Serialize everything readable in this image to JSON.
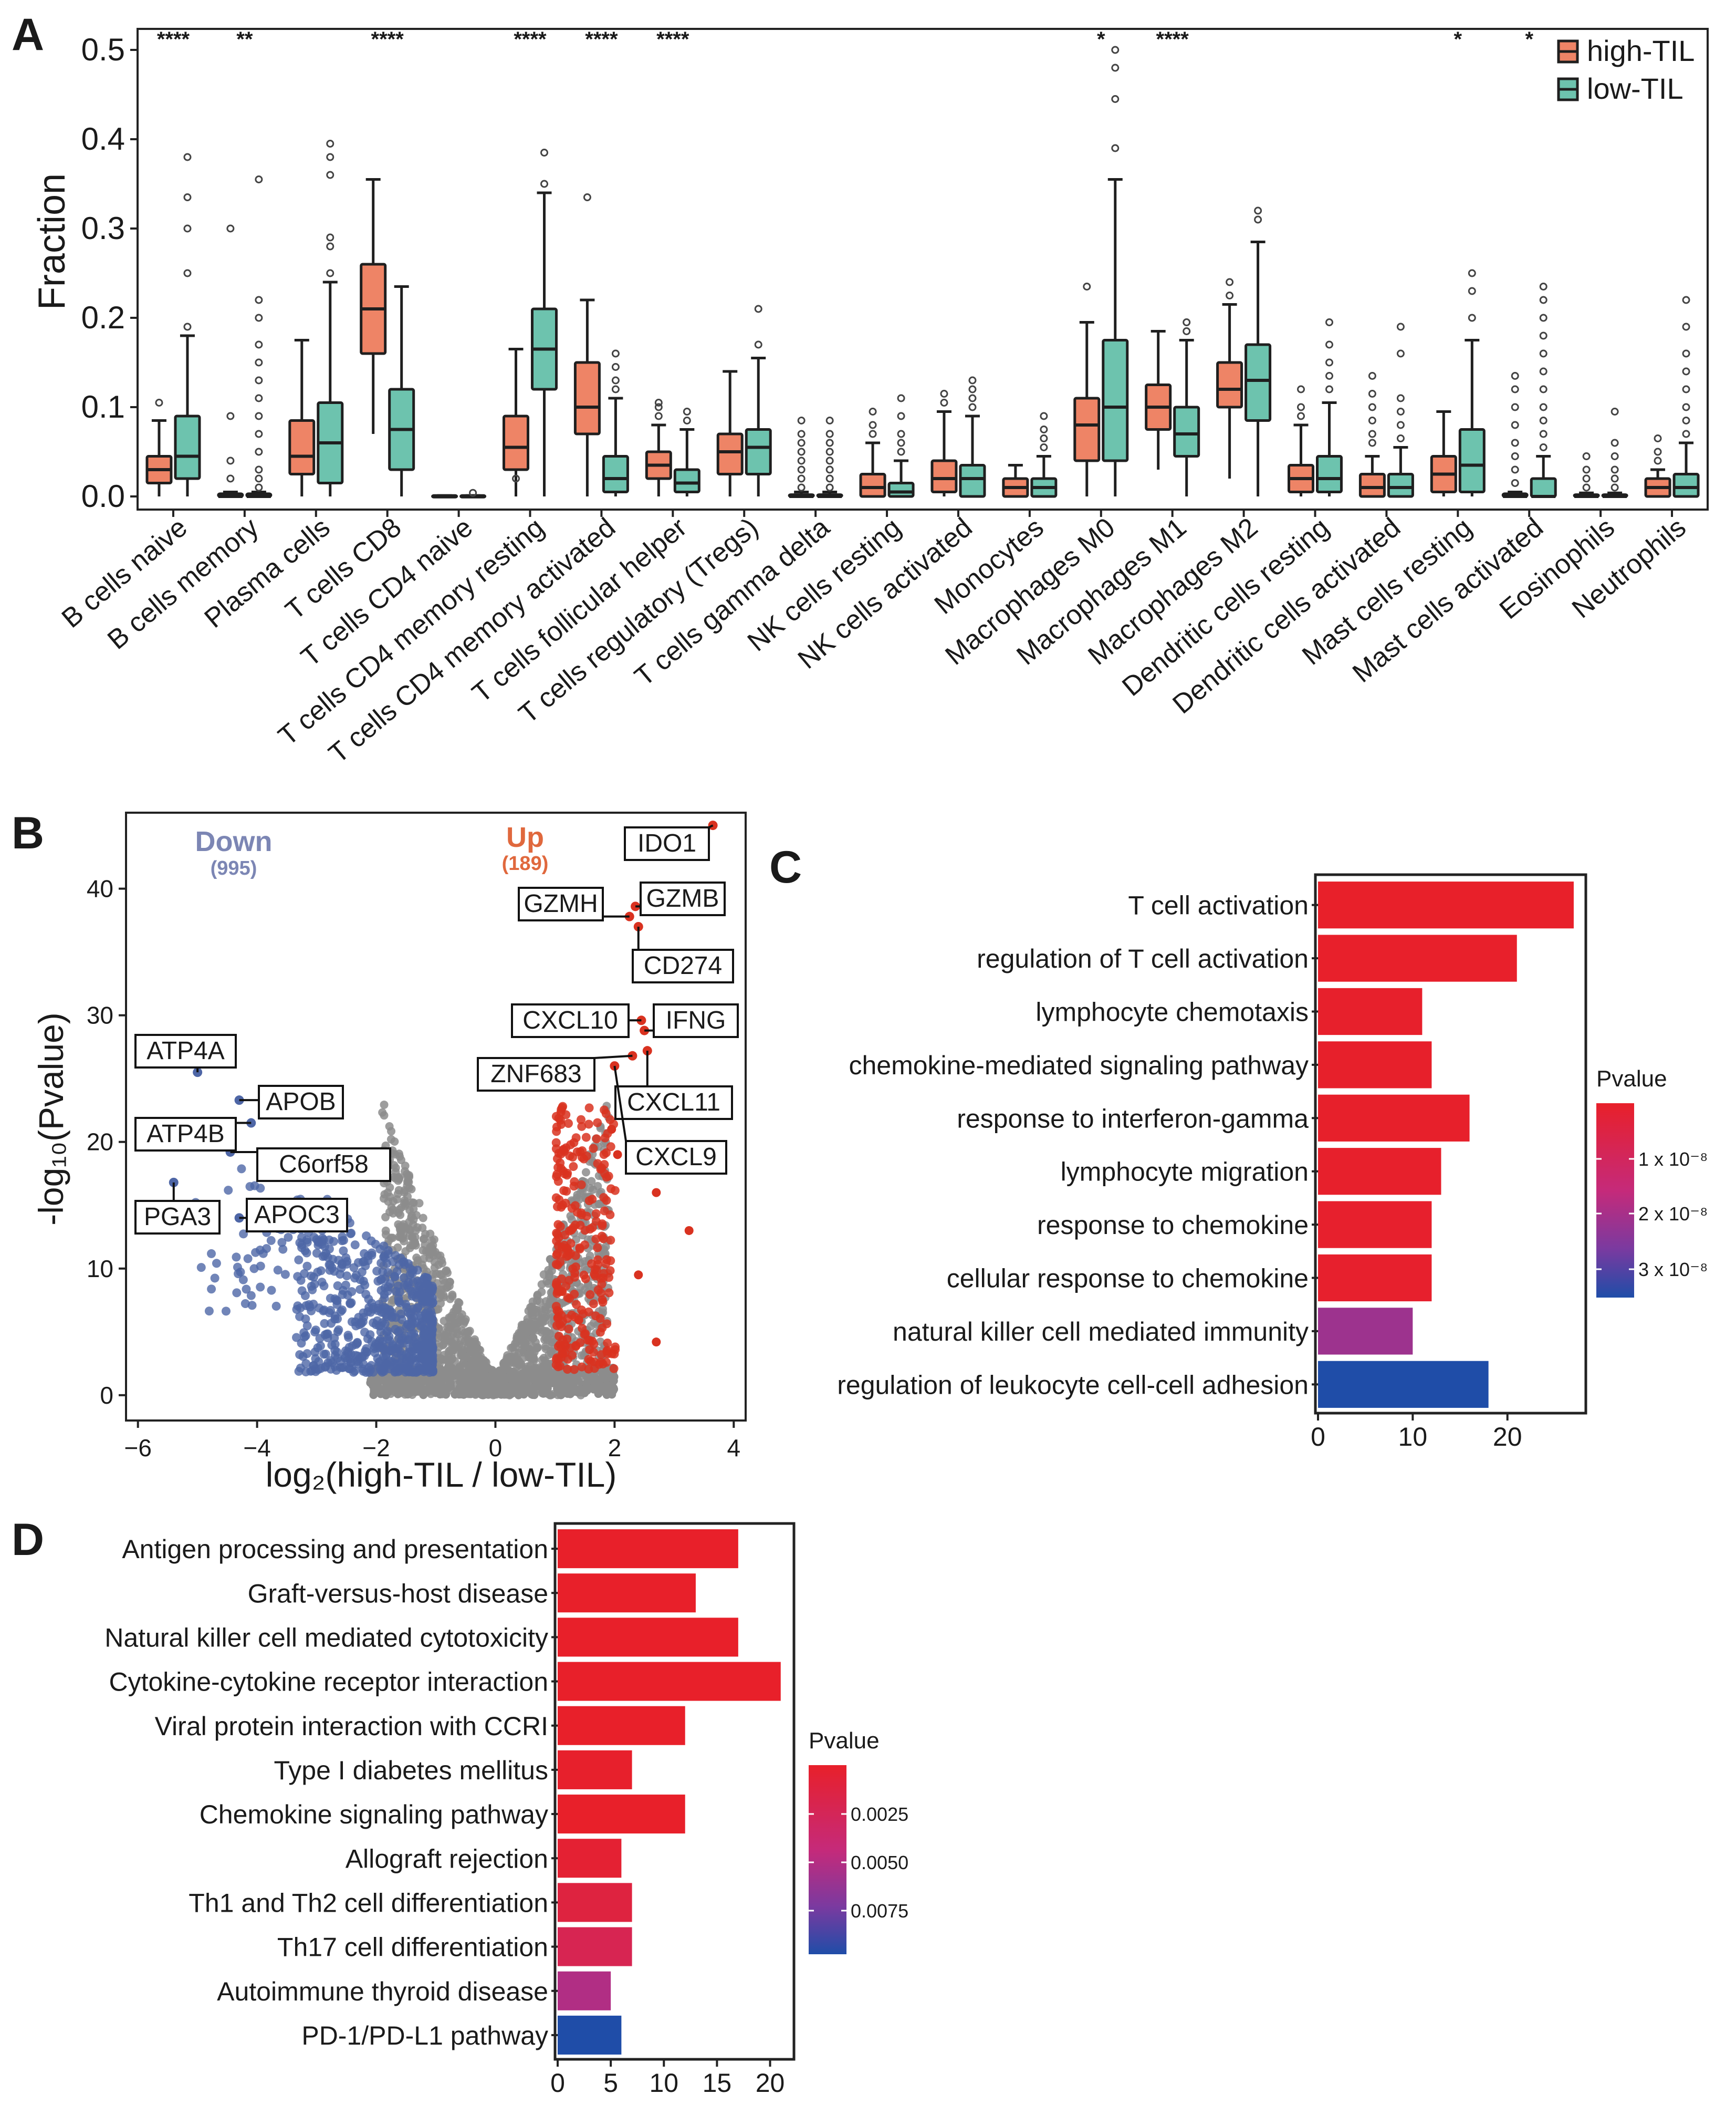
{
  "colors": {
    "high_til": "#EE8466",
    "low_til": "#6DC3AE",
    "axis": "#222222",
    "box_stroke": "#1f1f1f",
    "down": "#4E66A6",
    "up": "#D93220",
    "ns": "#8c8c8c",
    "down_label": "#7C86B4",
    "up_label": "#E0683D",
    "grad_low": "#E8202A",
    "grad_mid": "#B72B8E",
    "grad_high": "#1F4DA8"
  },
  "chart_data": [
    {
      "panel": "A",
      "type": "boxplot",
      "ylabel": "Fraction",
      "ylim": [
        0,
        0.5
      ],
      "yticks": [
        "0.0",
        "0.1",
        "0.2",
        "0.3",
        "0.4",
        "0.5"
      ],
      "legend": [
        "high-TIL",
        "low-TIL"
      ],
      "legend_position": "top-right",
      "categories": [
        {
          "name": "B cells naive",
          "sig": "****",
          "high": {
            "q1": 0.015,
            "med": 0.03,
            "q3": 0.045,
            "lo": 0.0,
            "hi": 0.085,
            "out": [
              0.105
            ]
          },
          "low": {
            "q1": 0.02,
            "med": 0.045,
            "q3": 0.09,
            "lo": 0.0,
            "hi": 0.18,
            "out": [
              0.19,
              0.25,
              0.3,
              0.335,
              0.38
            ]
          }
        },
        {
          "name": "B cells memory",
          "sig": "**",
          "high": {
            "q1": 0.0,
            "med": 0.0,
            "q3": 0.003,
            "lo": 0.0,
            "hi": 0.005,
            "out": [
              0.02,
              0.04,
              0.09,
              0.3
            ]
          },
          "low": {
            "q1": 0.0,
            "med": 0.0,
            "q3": 0.003,
            "lo": 0.0,
            "hi": 0.005,
            "out": [
              0.01,
              0.02,
              0.03,
              0.05,
              0.07,
              0.09,
              0.11,
              0.13,
              0.15,
              0.17,
              0.2,
              0.22,
              0.355
            ]
          }
        },
        {
          "name": "Plasma cells",
          "sig": "",
          "high": {
            "q1": 0.025,
            "med": 0.045,
            "q3": 0.085,
            "lo": 0.0,
            "hi": 0.175,
            "out": []
          },
          "low": {
            "q1": 0.015,
            "med": 0.06,
            "q3": 0.105,
            "lo": 0.0,
            "hi": 0.24,
            "out": [
              0.25,
              0.28,
              0.29,
              0.36,
              0.38,
              0.395
            ]
          }
        },
        {
          "name": "T cells CD8",
          "sig": "****",
          "high": {
            "q1": 0.16,
            "med": 0.21,
            "q3": 0.26,
            "lo": 0.07,
            "hi": 0.355,
            "out": []
          },
          "low": {
            "q1": 0.03,
            "med": 0.075,
            "q3": 0.12,
            "lo": 0.0,
            "hi": 0.235,
            "out": []
          }
        },
        {
          "name": "T cells CD4 naive",
          "sig": "",
          "high": {
            "q1": 0.0,
            "med": 0.0,
            "q3": 0.001,
            "lo": 0.0,
            "hi": 0.001,
            "out": []
          },
          "low": {
            "q1": 0.0,
            "med": 0.0,
            "q3": 0.001,
            "lo": 0.0,
            "hi": 0.001,
            "out": [
              0.004
            ]
          }
        },
        {
          "name": "T cells CD4 memory resting",
          "sig": "****",
          "high": {
            "q1": 0.03,
            "med": 0.055,
            "q3": 0.09,
            "lo": 0.0,
            "hi": 0.165,
            "out": [
              0.02
            ]
          },
          "low": {
            "q1": 0.12,
            "med": 0.165,
            "q3": 0.21,
            "lo": 0.0,
            "hi": 0.34,
            "out": [
              0.35,
              0.385
            ]
          }
        },
        {
          "name": "T cells CD4 memory activated",
          "sig": "****",
          "high": {
            "q1": 0.07,
            "med": 0.1,
            "q3": 0.15,
            "lo": 0.0,
            "hi": 0.22,
            "out": [
              0.335
            ]
          },
          "low": {
            "q1": 0.005,
            "med": 0.02,
            "q3": 0.045,
            "lo": 0.0,
            "hi": 0.11,
            "out": [
              0.12,
              0.13,
              0.145,
              0.16
            ]
          }
        },
        {
          "name": "T cells follicular helper",
          "sig": "****",
          "high": {
            "q1": 0.02,
            "med": 0.035,
            "q3": 0.05,
            "lo": 0.0,
            "hi": 0.08,
            "out": [
              0.09,
              0.1,
              0.105
            ]
          },
          "low": {
            "q1": 0.005,
            "med": 0.015,
            "q3": 0.03,
            "lo": 0.0,
            "hi": 0.075,
            "out": [
              0.085,
              0.095
            ]
          }
        },
        {
          "name": "T cells regulatory (Tregs)",
          "sig": "",
          "high": {
            "q1": 0.025,
            "med": 0.05,
            "q3": 0.07,
            "lo": 0.0,
            "hi": 0.14,
            "out": []
          },
          "low": {
            "q1": 0.025,
            "med": 0.055,
            "q3": 0.075,
            "lo": 0.0,
            "hi": 0.155,
            "out": [
              0.17,
              0.21
            ]
          }
        },
        {
          "name": "T cells gamma delta",
          "sig": "",
          "high": {
            "q1": 0.0,
            "med": 0.0,
            "q3": 0.002,
            "lo": 0.0,
            "hi": 0.005,
            "out": [
              0.01,
              0.02,
              0.03,
              0.04,
              0.05,
              0.06,
              0.07,
              0.085
            ]
          },
          "low": {
            "q1": 0.0,
            "med": 0.0,
            "q3": 0.002,
            "lo": 0.0,
            "hi": 0.005,
            "out": [
              0.01,
              0.02,
              0.03,
              0.04,
              0.05,
              0.06,
              0.07,
              0.085
            ]
          }
        },
        {
          "name": "NK cells resting",
          "sig": "",
          "high": {
            "q1": 0.0,
            "med": 0.01,
            "q3": 0.025,
            "lo": 0.0,
            "hi": 0.06,
            "out": [
              0.07,
              0.08,
              0.095
            ]
          },
          "low": {
            "q1": 0.0,
            "med": 0.005,
            "q3": 0.015,
            "lo": 0.0,
            "hi": 0.04,
            "out": [
              0.05,
              0.06,
              0.07,
              0.09,
              0.11
            ]
          }
        },
        {
          "name": "NK cells activated",
          "sig": "",
          "high": {
            "q1": 0.005,
            "med": 0.02,
            "q3": 0.04,
            "lo": 0.0,
            "hi": 0.095,
            "out": [
              0.105,
              0.115
            ]
          },
          "low": {
            "q1": 0.0,
            "med": 0.02,
            "q3": 0.035,
            "lo": 0.0,
            "hi": 0.09,
            "out": [
              0.1,
              0.11,
              0.12,
              0.13
            ]
          }
        },
        {
          "name": "Monocytes",
          "sig": "",
          "high": {
            "q1": 0.0,
            "med": 0.01,
            "q3": 0.02,
            "lo": 0.0,
            "hi": 0.035,
            "out": []
          },
          "low": {
            "q1": 0.0,
            "med": 0.01,
            "q3": 0.02,
            "lo": 0.0,
            "hi": 0.045,
            "out": [
              0.055,
              0.065,
              0.075,
              0.09
            ]
          }
        },
        {
          "name": "Macrophages M0",
          "sig": "*",
          "high": {
            "q1": 0.04,
            "med": 0.08,
            "q3": 0.11,
            "lo": 0.0,
            "hi": 0.195,
            "out": [
              0.235
            ]
          },
          "low": {
            "q1": 0.04,
            "med": 0.1,
            "q3": 0.175,
            "lo": 0.0,
            "hi": 0.355,
            "out": [
              0.39,
              0.445,
              0.48,
              0.5
            ]
          }
        },
        {
          "name": "Macrophages M1",
          "sig": "****",
          "high": {
            "q1": 0.075,
            "med": 0.1,
            "q3": 0.125,
            "lo": 0.03,
            "hi": 0.185,
            "out": []
          },
          "low": {
            "q1": 0.045,
            "med": 0.07,
            "q3": 0.1,
            "lo": 0.0,
            "hi": 0.175,
            "out": [
              0.185,
              0.195
            ]
          }
        },
        {
          "name": "Macrophages M2",
          "sig": "",
          "high": {
            "q1": 0.1,
            "med": 0.12,
            "q3": 0.15,
            "lo": 0.02,
            "hi": 0.215,
            "out": [
              0.225,
              0.24
            ]
          },
          "low": {
            "q1": 0.085,
            "med": 0.13,
            "q3": 0.17,
            "lo": 0.0,
            "hi": 0.285,
            "out": [
              0.31,
              0.32
            ]
          }
        },
        {
          "name": "Dendritic cells resting",
          "sig": "",
          "high": {
            "q1": 0.005,
            "med": 0.02,
            "q3": 0.035,
            "lo": 0.0,
            "hi": 0.08,
            "out": [
              0.09,
              0.1,
              0.12
            ]
          },
          "low": {
            "q1": 0.005,
            "med": 0.02,
            "q3": 0.045,
            "lo": 0.0,
            "hi": 0.105,
            "out": [
              0.12,
              0.135,
              0.15,
              0.17,
              0.195
            ]
          }
        },
        {
          "name": "Dendritic cells activated",
          "sig": "",
          "high": {
            "q1": 0.0,
            "med": 0.01,
            "q3": 0.025,
            "lo": 0.0,
            "hi": 0.045,
            "out": [
              0.06,
              0.07,
              0.085,
              0.1,
              0.115,
              0.135
            ]
          },
          "low": {
            "q1": 0.0,
            "med": 0.01,
            "q3": 0.025,
            "lo": 0.0,
            "hi": 0.055,
            "out": [
              0.065,
              0.08,
              0.095,
              0.11,
              0.16,
              0.19
            ]
          }
        },
        {
          "name": "Mast cells resting",
          "sig": "*",
          "high": {
            "q1": 0.005,
            "med": 0.025,
            "q3": 0.045,
            "lo": 0.0,
            "hi": 0.095,
            "out": []
          },
          "low": {
            "q1": 0.005,
            "med": 0.035,
            "q3": 0.075,
            "lo": 0.0,
            "hi": 0.175,
            "out": [
              0.2,
              0.23,
              0.25
            ]
          }
        },
        {
          "name": "Mast cells activated",
          "sig": "*",
          "high": {
            "q1": 0.0,
            "med": 0.0,
            "q3": 0.003,
            "lo": 0.0,
            "hi": 0.005,
            "out": [
              0.015,
              0.03,
              0.045,
              0.06,
              0.08,
              0.1,
              0.12,
              0.135
            ]
          },
          "low": {
            "q1": 0.0,
            "med": 0.0,
            "q3": 0.02,
            "lo": 0.0,
            "hi": 0.045,
            "out": [
              0.055,
              0.07,
              0.085,
              0.1,
              0.12,
              0.14,
              0.16,
              0.18,
              0.2,
              0.22,
              0.235
            ]
          }
        },
        {
          "name": "Eosinophils",
          "sig": "",
          "high": {
            "q1": 0.0,
            "med": 0.0,
            "q3": 0.002,
            "lo": 0.0,
            "hi": 0.004,
            "out": [
              0.01,
              0.02,
              0.03,
              0.045
            ]
          },
          "low": {
            "q1": 0.0,
            "med": 0.0,
            "q3": 0.002,
            "lo": 0.0,
            "hi": 0.004,
            "out": [
              0.01,
              0.02,
              0.03,
              0.045,
              0.06,
              0.095
            ]
          }
        },
        {
          "name": "Neutrophils",
          "sig": "",
          "high": {
            "q1": 0.0,
            "med": 0.01,
            "q3": 0.02,
            "lo": 0.0,
            "hi": 0.03,
            "out": [
              0.04,
              0.05,
              0.065
            ]
          },
          "low": {
            "q1": 0.0,
            "med": 0.01,
            "q3": 0.025,
            "lo": 0.0,
            "hi": 0.06,
            "out": [
              0.07,
              0.085,
              0.1,
              0.12,
              0.14,
              0.16,
              0.19,
              0.22
            ]
          }
        }
      ]
    },
    {
      "panel": "B",
      "type": "scatter",
      "title": "",
      "xlabel": "log₂(high-TIL / low-TIL)",
      "ylabel": "-log₁₀(Pvalue)",
      "xlim": [
        -6.2,
        4.2
      ],
      "ylim": [
        -2,
        46
      ],
      "xticks": [
        "−6",
        "−4",
        "−2",
        "0",
        "2",
        "4"
      ],
      "yticks": [
        "0",
        "10",
        "20",
        "30",
        "40"
      ],
      "down_label": "Down",
      "down_count": "(995)",
      "up_label": "Up",
      "up_count": "(189)",
      "labeled_genes": [
        {
          "gene": "IDO1",
          "x": 3.65,
          "y": 45.0
        },
        {
          "gene": "GZMH",
          "x": 2.25,
          "y": 37.8
        },
        {
          "gene": "GZMB",
          "x": 2.35,
          "y": 38.6
        },
        {
          "gene": "CD274",
          "x": 2.4,
          "y": 37.0
        },
        {
          "gene": "CXCL10",
          "x": 2.45,
          "y": 29.6
        },
        {
          "gene": "IFNG",
          "x": 2.5,
          "y": 28.8
        },
        {
          "gene": "ZNF683",
          "x": 2.3,
          "y": 26.8
        },
        {
          "gene": "CXCL11",
          "x": 2.55,
          "y": 27.2
        },
        {
          "gene": "CXCL9",
          "x": 2.0,
          "y": 26.0
        },
        {
          "gene": "ATP4A",
          "x": -5.0,
          "y": 25.5
        },
        {
          "gene": "APOB",
          "x": -4.3,
          "y": 23.3
        },
        {
          "gene": "ATP4B",
          "x": -4.1,
          "y": 21.5
        },
        {
          "gene": "C6orf58",
          "x": -4.45,
          "y": 19.2
        },
        {
          "gene": "PGA3",
          "x": -5.4,
          "y": 16.8
        },
        {
          "gene": "APOC3",
          "x": -4.3,
          "y": 14.0
        }
      ]
    },
    {
      "panel": "C",
      "type": "bar",
      "orientation": "horizontal",
      "categories": [
        "T cell activation",
        "regulation of T cell activation",
        "lymphocyte chemotaxis",
        "chemokine-mediated signaling pathway",
        "response to interferon-gamma",
        "lymphocyte migration",
        "response to chemokine",
        "cellular response to chemokine",
        "natural killer cell mediated immunity",
        "regulation of leukocyte cell-cell adhesion"
      ],
      "values": [
        27,
        21,
        11,
        12,
        16,
        13,
        12,
        12,
        10,
        18
      ],
      "pvalues": [
        1e-10,
        2e-10,
        4e-10,
        3e-10,
        3e-10,
        5e-10,
        6e-10,
        6e-10,
        2.2e-08,
        3.6e-08
      ],
      "xlim": [
        0,
        28
      ],
      "xticks": [
        "0",
        "10",
        "20"
      ],
      "legend_title": "Pvalue",
      "legend_ticks": [
        "1 x 10⁻⁸",
        "2 x 10⁻⁸",
        "3 x 10⁻⁸"
      ],
      "legend_position": "right"
    },
    {
      "panel": "D",
      "type": "bar",
      "orientation": "horizontal",
      "categories": [
        "Antigen processing and presentation",
        "Graft-versus-host disease",
        "Natural killer cell mediated cytotoxicity",
        "Cytokine-cytokine receptor interaction",
        "Viral protein interaction with CCRI",
        "Type I diabetes mellitus",
        "Chemokine signaling pathway",
        "Allograft rejection",
        "Th1 and Th2 cell differentiation",
        "Th17 cell differentiation",
        "Autoimmune thyroid disease",
        "PD-1/PD-L1 pathway"
      ],
      "values": [
        17,
        13,
        17,
        21,
        12,
        7,
        12,
        6,
        7,
        7,
        5,
        6
      ],
      "pvalues": [
        1e-05,
        1e-05,
        1e-05,
        1e-05,
        1e-05,
        0.0001,
        1e-05,
        0.0005,
        0.0012,
        0.0022,
        0.0052,
        0.0098
      ],
      "xlim": [
        0,
        22
      ],
      "xticks": [
        "0",
        "5",
        "10",
        "15",
        "20"
      ],
      "legend_title": "Pvalue",
      "legend_ticks": [
        "0.0025",
        "0.0050",
        "0.0075"
      ],
      "legend_position": "right"
    }
  ],
  "panel_labels": [
    "A",
    "B",
    "C",
    "D"
  ]
}
